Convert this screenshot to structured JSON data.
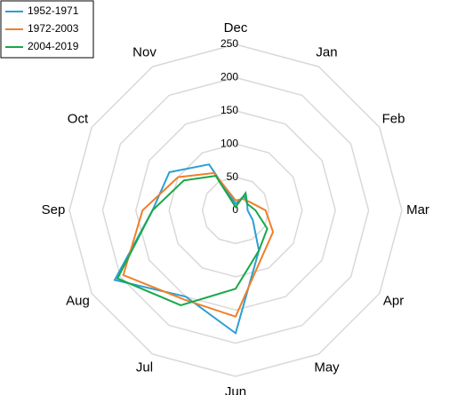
{
  "chart_data": {
    "type": "radar",
    "categories": [
      "Dec",
      "Jan",
      "Feb",
      "Mar",
      "Apr",
      "May",
      "Jun",
      "Jul",
      "Aug",
      "Sep",
      "Oct",
      "Nov"
    ],
    "series": [
      {
        "name": "1952-1971",
        "color": "#2a9fd6",
        "values": [
          10,
          25,
          20,
          18,
          30,
          70,
          185,
          150,
          210,
          125,
          115,
          80
        ]
      },
      {
        "name": "1972-2003",
        "color": "#f07f2a",
        "values": [
          15,
          20,
          25,
          45,
          65,
          80,
          160,
          155,
          195,
          140,
          100,
          65
        ]
      },
      {
        "name": "2004-2019",
        "color": "#18a84a",
        "values": [
          5,
          30,
          20,
          30,
          55,
          70,
          118,
          165,
          205,
          125,
          90,
          60
        ]
      }
    ],
    "ylim": [
      0,
      250
    ],
    "yticks": [
      0,
      50,
      100,
      150,
      200,
      250
    ],
    "grid": true,
    "legend": "top-left"
  }
}
